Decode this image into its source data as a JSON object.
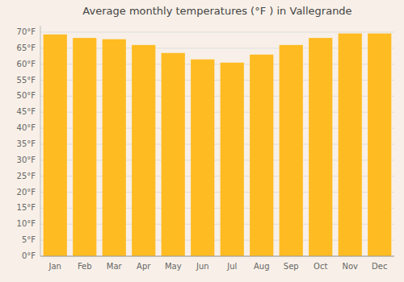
{
  "chart_data": {
    "type": "bar",
    "title": "Average monthly temperatures (°F ) in Vallegrande",
    "categories": [
      "Jan",
      "Feb",
      "Mar",
      "Apr",
      "May",
      "Jun",
      "Jul",
      "Aug",
      "Sep",
      "Oct",
      "Nov",
      "Dec"
    ],
    "values": [
      69.3,
      68.2,
      67.8,
      66.0,
      63.5,
      61.5,
      60.5,
      63.0,
      66.0,
      68.2,
      69.6,
      69.6
    ],
    "color": "#FFBB22",
    "ylim": [
      0,
      72
    ],
    "yticks": [
      {
        "value": 0,
        "label": "0°F"
      },
      {
        "value": 5,
        "label": "5°F"
      },
      {
        "value": 10,
        "label": "10°F"
      },
      {
        "value": 15,
        "label": "15°F"
      },
      {
        "value": 20,
        "label": "20°F"
      },
      {
        "value": 25,
        "label": "25°F"
      },
      {
        "value": 30,
        "label": "30°F"
      },
      {
        "value": 35,
        "label": "35°F"
      },
      {
        "value": 40,
        "label": "40°F"
      },
      {
        "value": 45,
        "label": "45°F"
      },
      {
        "value": 50,
        "label": "50°F"
      },
      {
        "value": 55,
        "label": "55°F"
      },
      {
        "value": 60,
        "label": "60°F"
      },
      {
        "value": 65,
        "label": "65°F"
      },
      {
        "value": 70,
        "label": "70°F"
      }
    ],
    "grid": true
  }
}
